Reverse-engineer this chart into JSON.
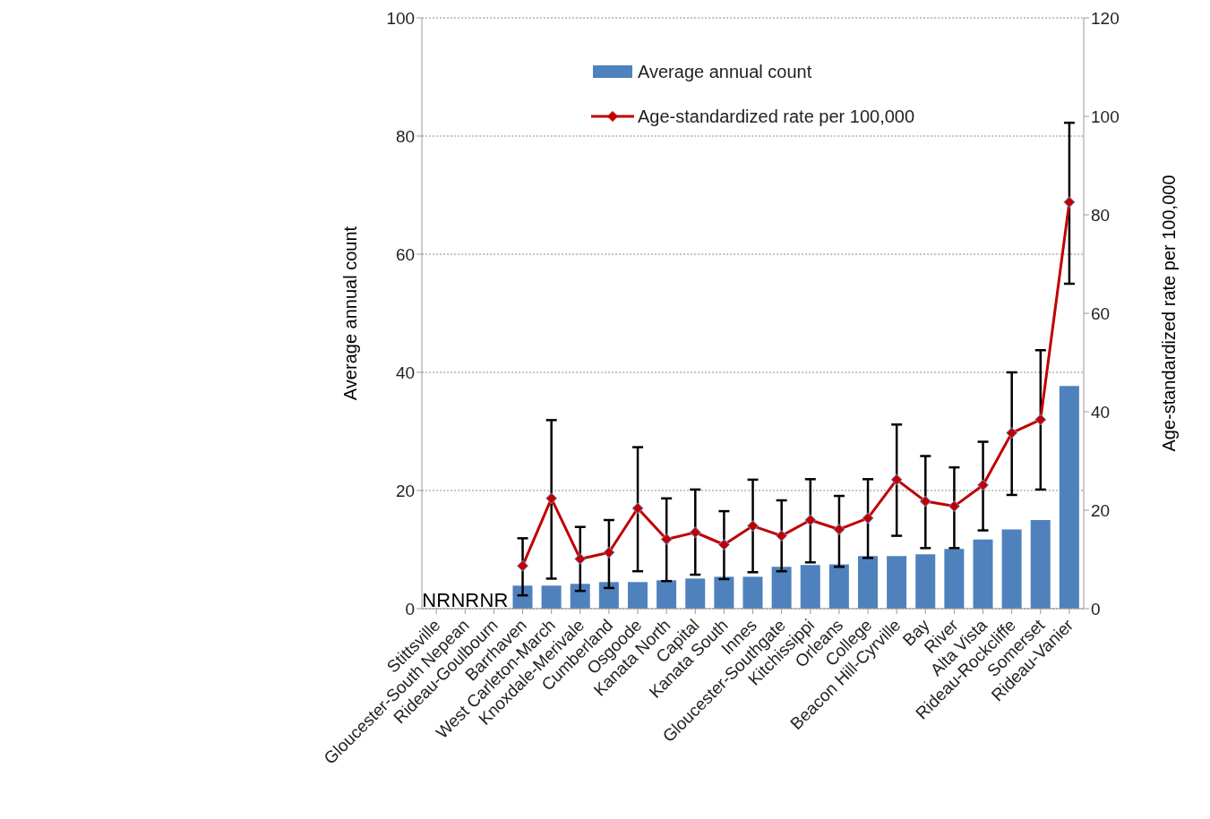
{
  "chart_data": {
    "type": "bar",
    "xlabel": null,
    "ylabel": "Average annual count",
    "y2label": "Age-standardized rate per 100,000",
    "categories": [
      "Stittsville",
      "Gloucester-South Nepean",
      "Rideau-Goulbourn",
      "Barrhaven",
      "West Carleton-March",
      "Knoxdale-Merivale",
      "Cumberland",
      "Osgoode",
      "Kanata North",
      "Capital",
      "Kanata South",
      "Innes",
      "Gloucester-Southgate",
      "Kitchissippi",
      "Orleans",
      "College",
      "Beacon Hill-Cyrville",
      "Bay",
      "River",
      "Alta Vista",
      "Rideau-Rockcliffe",
      "Somerset",
      "Rideau-Vanier"
    ],
    "series": [
      {
        "name": "Average annual count",
        "color": "#4f81bd",
        "values": [
          null,
          null,
          null,
          3.9,
          3.9,
          4.2,
          4.5,
          4.5,
          4.8,
          5.1,
          5.4,
          5.4,
          7.1,
          7.4,
          7.5,
          8.9,
          8.9,
          9.2,
          10.1,
          11.7,
          13.4,
          15.0,
          37.7
        ],
        "value_labels": [
          "NR",
          "NR",
          "NR",
          null,
          null,
          null,
          null,
          null,
          null,
          null,
          null,
          null,
          null,
          null,
          null,
          null,
          null,
          null,
          null,
          null,
          null,
          null,
          null
        ]
      },
      {
        "name": "Age-standardized rate per 100,000",
        "type": "line",
        "axis": "y2",
        "color": "#c00000",
        "marker": "diamond",
        "line_style": "solid",
        "values": [
          null,
          null,
          null,
          8.7,
          22.4,
          10.1,
          11.4,
          20.4,
          14.1,
          15.5,
          13.0,
          16.8,
          14.8,
          18.0,
          16.1,
          18.4,
          26.2,
          21.8,
          20.8,
          25.1,
          35.7,
          38.4,
          82.6
        ],
        "errors": [
          null,
          null,
          null,
          [
            2.7,
            14.3
          ],
          [
            6.1,
            38.3
          ],
          [
            3.6,
            16.6
          ],
          [
            4.2,
            18.0
          ],
          [
            7.6,
            32.8
          ],
          [
            5.6,
            22.4
          ],
          [
            6.9,
            24.2
          ],
          [
            6.0,
            19.8
          ],
          [
            7.4,
            26.2
          ],
          [
            7.6,
            22.0
          ],
          [
            9.4,
            26.3
          ],
          [
            8.5,
            22.9
          ],
          [
            10.3,
            26.3
          ],
          [
            14.8,
            37.4
          ],
          [
            12.3,
            31.0
          ],
          [
            12.3,
            28.7
          ],
          [
            15.9,
            33.9
          ],
          [
            23.1,
            48.0
          ],
          [
            24.2,
            52.5
          ],
          [
            66.0,
            98.7
          ]
        ]
      }
    ],
    "ylim": [
      0,
      100
    ],
    "yticks": [
      0,
      20,
      40,
      60,
      80,
      100
    ],
    "y2lim": [
      0,
      120
    ],
    "y2ticks": [
      0,
      20,
      40,
      60,
      80,
      100,
      120
    ],
    "grid": "y",
    "legend": "top right"
  }
}
